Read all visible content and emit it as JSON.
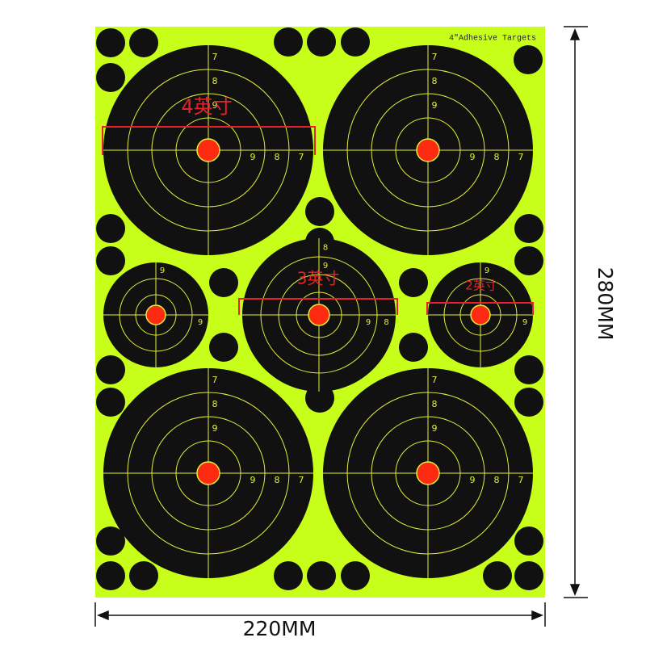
{
  "header": {
    "title": "4\"Adhesive Targets"
  },
  "annotations": [
    {
      "label": "4英寸"
    },
    {
      "label": "3英寸"
    },
    {
      "label": "2英寸"
    }
  ],
  "dimensions": {
    "width": "220MM",
    "height": "280MM"
  },
  "targets": [
    {
      "labels": [
        "7",
        "8",
        "9"
      ]
    },
    {
      "labels": [
        "7",
        "8",
        "9"
      ]
    },
    {
      "labels": [
        "7",
        "8",
        "9"
      ]
    },
    {
      "labels": [
        "7",
        "8",
        "9"
      ]
    },
    {
      "labels": [
        "8",
        "9"
      ]
    },
    {
      "labels": [
        "9"
      ]
    },
    {
      "labels": [
        "9"
      ]
    }
  ]
}
